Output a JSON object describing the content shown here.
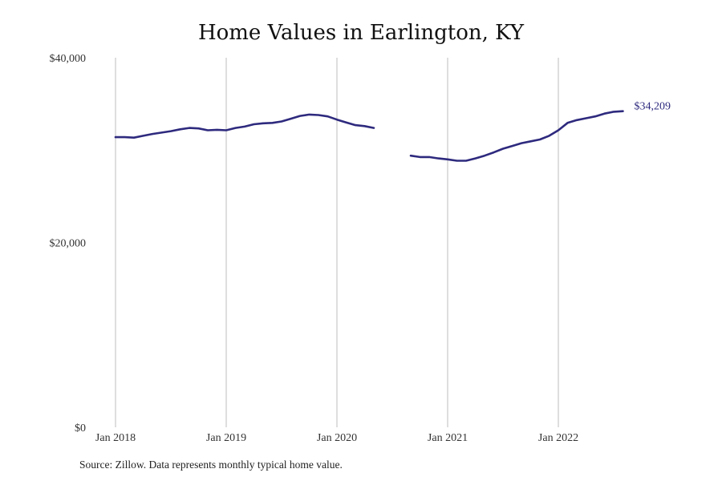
{
  "chart_data": {
    "type": "line",
    "title": "Home Values in Earlington, KY",
    "xlabel": "",
    "ylabel": "",
    "ylim": [
      0,
      40000
    ],
    "y_ticks": [
      {
        "value": 0,
        "label": "$0"
      },
      {
        "value": 20000,
        "label": "$20,000"
      },
      {
        "value": 40000,
        "label": "$40,000"
      }
    ],
    "x_ticks": [
      {
        "date": "2018-01",
        "label": "Jan 2018"
      },
      {
        "date": "2019-01",
        "label": "Jan 2019"
      },
      {
        "date": "2020-01",
        "label": "Jan 2020"
      },
      {
        "date": "2021-01",
        "label": "Jan 2021"
      },
      {
        "date": "2022-01",
        "label": "Jan 2022"
      }
    ],
    "grid": "vertical",
    "line_color": "#2e2a7e",
    "end_label": "$34,209",
    "series": [
      {
        "segments": [
          {
            "x": [
              "2018-01",
              "2018-02",
              "2018-03",
              "2018-04",
              "2018-05",
              "2018-06",
              "2018-07",
              "2018-08",
              "2018-09",
              "2018-10",
              "2018-11",
              "2018-12",
              "2019-01",
              "2019-02",
              "2019-03",
              "2019-04",
              "2019-05",
              "2019-06",
              "2019-07",
              "2019-08",
              "2019-09",
              "2019-10",
              "2019-11",
              "2019-12",
              "2020-01",
              "2020-02",
              "2020-03",
              "2020-04",
              "2020-05"
            ],
            "y": [
              31400,
              31400,
              31350,
              31550,
              31750,
              31900,
              32050,
              32250,
              32400,
              32350,
              32150,
              32200,
              32150,
              32400,
              32550,
              32800,
              32900,
              32950,
              33100,
              33400,
              33700,
              33850,
              33800,
              33650,
              33300,
              33000,
              32700,
              32600,
              32400
            ]
          },
          {
            "x": [
              "2020-09",
              "2020-10",
              "2020-11",
              "2020-12",
              "2021-01",
              "2021-02",
              "2021-03",
              "2021-04",
              "2021-05",
              "2021-06",
              "2021-07",
              "2021-08",
              "2021-09",
              "2021-10",
              "2021-11",
              "2021-12",
              "2022-01",
              "2022-02",
              "2022-03",
              "2022-04",
              "2022-05",
              "2022-06",
              "2022-07",
              "2022-08"
            ],
            "y": [
              29400,
              29250,
              29250,
              29100,
              29000,
              28850,
              28850,
              29100,
              29400,
              29750,
              30150,
              30450,
              30750,
              30950,
              31150,
              31550,
              32150,
              32950,
              33250,
              33450,
              33650,
              33950,
              34150,
              34209
            ]
          }
        ]
      }
    ]
  },
  "source_text": "Source: Zillow. Data represents monthly typical home value."
}
